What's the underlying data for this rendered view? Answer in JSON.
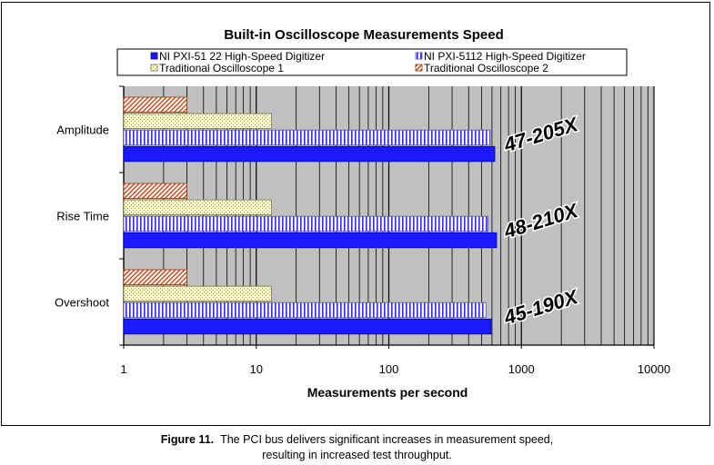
{
  "chart_data": {
    "type": "bar",
    "orientation": "horizontal",
    "title": "Built-in Oscilloscope Measurements Speed",
    "xlabel": "Measurements per second",
    "ylabel": "",
    "x_scale": "log",
    "xlim": [
      1,
      10000
    ],
    "x_ticks": [
      "1",
      "10",
      "100",
      "1000",
      "10000"
    ],
    "grid": true,
    "legend_position": "top",
    "categories": [
      "Amplitude",
      "Rise Time",
      "Overshoot"
    ],
    "series": [
      {
        "name": "NI PXI-51 22 High-Speed Digitizer",
        "values": [
          630,
          650,
          590
        ],
        "color": "#1a1aff",
        "pattern": "solid"
      },
      {
        "name": "NI PXI-5112 High-Speed Digitizer",
        "values": [
          580,
          560,
          540
        ],
        "color": "#ffffff",
        "pattern": "vertical-stripes"
      },
      {
        "name": "Traditional Oscilloscope 1",
        "values": [
          13,
          13,
          13
        ],
        "color": "#ffffcc",
        "pattern": "checker"
      },
      {
        "name": "Traditional Oscilloscope  2",
        "values": [
          3,
          3,
          3
        ],
        "color": "#ffffff",
        "pattern": "diagonal-red"
      }
    ],
    "annotations": [
      "47-205X",
      "48-210X",
      "45-190X"
    ]
  },
  "caption": {
    "figure_label": "Figure 11.",
    "line1": "The PCI bus delivers significant increases in measurement speed,",
    "line2": "resulting in increased test throughput."
  }
}
